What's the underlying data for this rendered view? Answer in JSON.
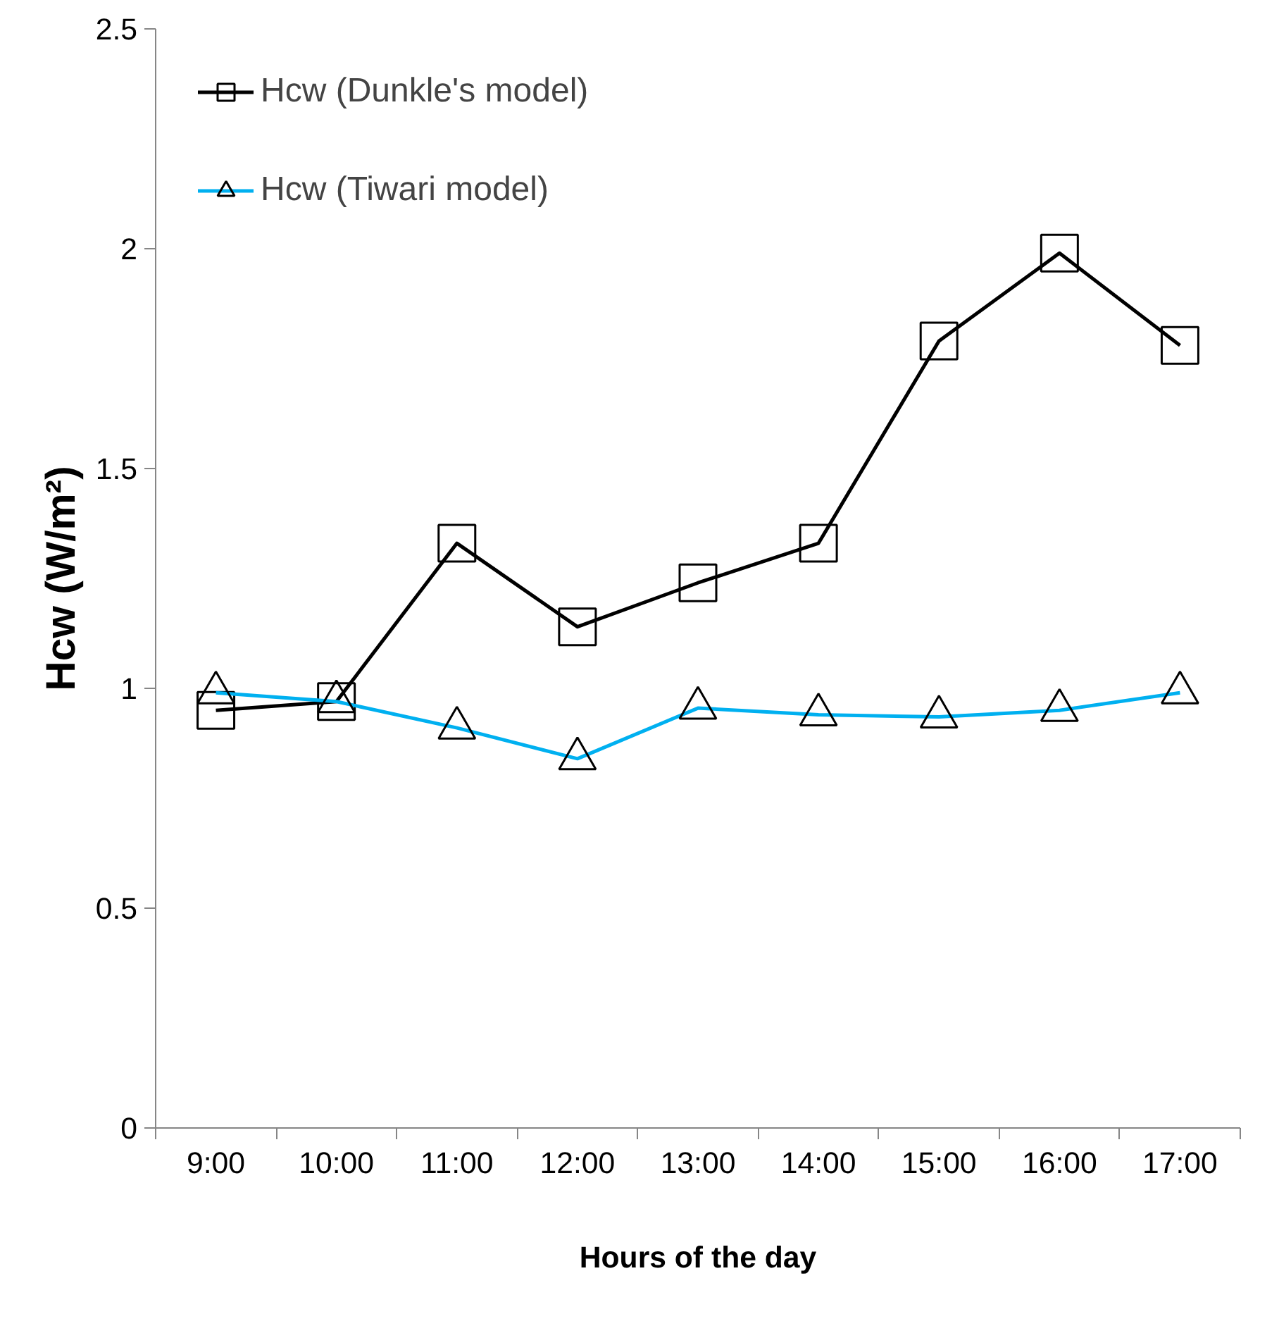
{
  "chart_data": {
    "type": "line",
    "xlabel": "Hours of the day",
    "ylabel": "Hcw (W/m²)",
    "categories": [
      "9:00",
      "10:00",
      "11:00",
      "12:00",
      "13:00",
      "14:00",
      "15:00",
      "16:00",
      "17:00"
    ],
    "series": [
      {
        "name": "Hcw (Dunkle's model)",
        "color": "#000000",
        "marker": "square",
        "values": [
          0.95,
          0.97,
          1.33,
          1.14,
          1.24,
          1.33,
          1.79,
          1.99,
          1.78
        ]
      },
      {
        "name": "Hcw (Tiwari model)",
        "color": "#00b0f0",
        "marker": "triangle",
        "values": [
          0.99,
          0.97,
          0.91,
          0.84,
          0.955,
          0.94,
          0.935,
          0.95,
          0.99
        ]
      }
    ],
    "ylim": [
      0,
      2.5
    ],
    "yticks": [
      0,
      0.5,
      1,
      1.5,
      2,
      2.5
    ],
    "grid": false,
    "legend": "top left",
    "line_style": "solid"
  }
}
